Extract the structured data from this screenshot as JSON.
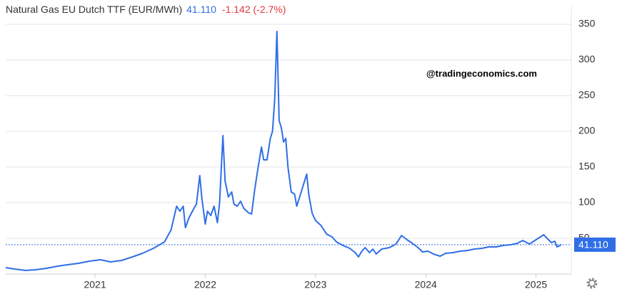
{
  "chart_data": {
    "type": "line",
    "title": "Natural Gas EU Dutch TTF (EUR/MWh)",
    "change": "-1.142 (-2.7%)",
    "watermark": "@tradingeconomics.com",
    "reference_line": {
      "value": 41.11,
      "label": "41.110"
    },
    "x": [
      2020.19,
      2020.27,
      2020.37,
      2020.46,
      2020.56,
      2020.66,
      2020.75,
      2020.85,
      2020.95,
      2021.05,
      2021.14,
      2021.24,
      2021.34,
      2021.43,
      2021.53,
      2021.63,
      2021.69,
      2021.74,
      2021.77,
      2021.8,
      2021.82,
      2021.85,
      2021.89,
      2021.92,
      2021.95,
      2021.97,
      2022.0,
      2022.02,
      2022.05,
      2022.08,
      2022.11,
      2022.13,
      2022.16,
      2022.18,
      2022.21,
      2022.24,
      2022.26,
      2022.29,
      2022.32,
      2022.35,
      2022.39,
      2022.42,
      2022.45,
      2022.48,
      2022.51,
      2022.53,
      2022.56,
      2022.59,
      2022.61,
      2022.63,
      2022.65,
      2022.67,
      2022.69,
      2022.71,
      2022.73,
      2022.75,
      2022.78,
      2022.81,
      2022.83,
      2022.86,
      2022.89,
      2022.92,
      2022.94,
      2022.97,
      2023.0,
      2023.05,
      2023.1,
      2023.15,
      2023.19,
      2023.25,
      2023.31,
      2023.36,
      2023.39,
      2023.42,
      2023.45,
      2023.49,
      2023.52,
      2023.55,
      2023.6,
      2023.67,
      2023.73,
      2023.78,
      2023.83,
      2023.87,
      2023.93,
      2023.97,
      2024.02,
      2024.07,
      2024.13,
      2024.18,
      2024.25,
      2024.31,
      2024.38,
      2024.44,
      2024.51,
      2024.57,
      2024.64,
      2024.7,
      2024.77,
      2024.83,
      2024.88,
      2024.94,
      2025.01,
      2025.07,
      2025.1,
      2025.14,
      2025.17,
      2025.19,
      2025.23
    ],
    "series": [
      {
        "name": "Natural Gas EU Dutch TTF",
        "color": "#2f6ee6",
        "values": [
          9,
          7,
          5,
          6,
          8,
          11,
          13,
          15,
          18,
          20,
          17,
          19,
          24,
          29,
          36,
          45,
          62,
          95,
          88,
          95,
          65,
          78,
          90,
          98,
          138,
          105,
          70,
          88,
          82,
          95,
          72,
          100,
          194,
          130,
          108,
          115,
          98,
          95,
          102,
          92,
          86,
          84,
          120,
          150,
          178,
          160,
          160,
          190,
          200,
          245,
          340,
          215,
          205,
          185,
          190,
          150,
          115,
          112,
          95,
          110,
          125,
          140,
          110,
          85,
          75,
          68,
          56,
          52,
          45,
          40,
          36,
          30,
          24,
          32,
          37,
          30,
          35,
          28,
          35,
          37,
          42,
          54,
          48,
          44,
          37,
          31,
          32,
          28,
          25,
          29,
          30,
          32,
          33,
          35,
          36,
          38,
          38,
          40,
          41,
          43,
          47,
          42,
          49,
          55,
          50,
          44,
          46,
          38,
          41.11
        ]
      }
    ],
    "xlim": [
      2020.19,
      2025.32
    ],
    "xticks": [
      2021,
      2022,
      2023,
      2024,
      2025
    ],
    "ylim": [
      0,
      375
    ],
    "yticks": [
      50,
      100,
      150,
      200,
      250,
      300,
      350
    ],
    "grid": true
  }
}
